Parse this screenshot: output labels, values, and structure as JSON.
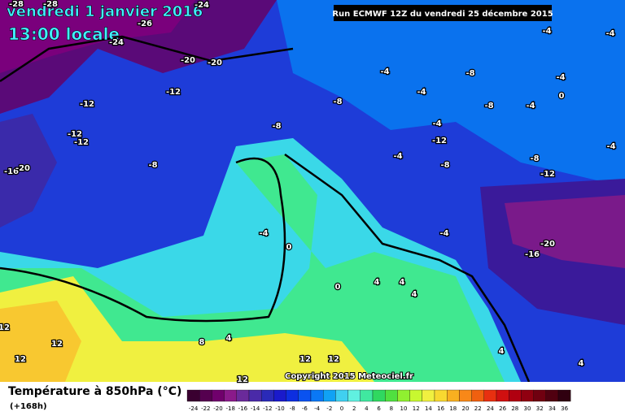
{
  "header": {
    "date": "vendredi 1 janvier 2016",
    "time": "13:00 locale",
    "run": "Run ECMWF 12Z du vendredi 25 décembre 2015"
  },
  "map": {
    "contour_labels": [
      -28,
      -28,
      -24,
      -26,
      -24,
      -20,
      -20,
      -12,
      -12,
      -12,
      -12,
      -16,
      -20,
      -8,
      -8,
      -8,
      -4,
      -4,
      -8,
      -8,
      -4,
      -4,
      -4,
      -4,
      0,
      -4,
      -12,
      -4,
      -4,
      -8,
      -8,
      -12,
      -4,
      -20,
      -16,
      -4,
      0,
      0,
      4,
      4,
      4,
      4,
      8,
      12,
      12,
      12,
      12,
      12,
      12,
      4,
      4
    ],
    "copyright": "Copyright 2015 Meteociel.fr"
  },
  "footer": {
    "title": "Température à 850hPa (°C)",
    "lead": "(+168h)"
  },
  "colorbar": {
    "labels": [
      -24,
      -22,
      -20,
      -18,
      -16,
      -14,
      -12,
      -10,
      -8,
      -6,
      -4,
      -2,
      0,
      2,
      4,
      6,
      8,
      10,
      12,
      14,
      16,
      18,
      20,
      22,
      24,
      26,
      28,
      30,
      32,
      34,
      36
    ],
    "colors": [
      "#3a0030",
      "#55004f",
      "#70006c",
      "#8a1a8a",
      "#6a2a9a",
      "#4a2aa8",
      "#2a2ab8",
      "#1a1acb",
      "#0d2ee0",
      "#0a52f0",
      "#0a78f5",
      "#10a2f5",
      "#40d0f0",
      "#60f0e0",
      "#40e8a0",
      "#30d860",
      "#50e040",
      "#90f030",
      "#c8f830",
      "#f0f040",
      "#f8d830",
      "#f8b020",
      "#f88818",
      "#f06010",
      "#e83010",
      "#d01010",
      "#b00010",
      "#900010",
      "#700010",
      "#500010",
      "#300010"
    ]
  }
}
